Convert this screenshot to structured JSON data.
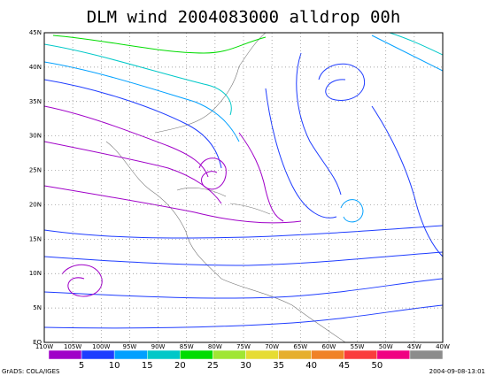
{
  "title": "DLM wind 2004083000 alldrop 00h",
  "map": {
    "lat_range": [
      0,
      45
    ],
    "lon_range": [
      -110,
      -40
    ],
    "lat_ticks": [
      {
        "value": 0,
        "label": "EQ"
      },
      {
        "value": 5,
        "label": "5N"
      },
      {
        "value": 10,
        "label": "10N"
      },
      {
        "value": 15,
        "label": "15N"
      },
      {
        "value": 20,
        "label": "20N"
      },
      {
        "value": 25,
        "label": "25N"
      },
      {
        "value": 30,
        "label": "30N"
      },
      {
        "value": 35,
        "label": "35N"
      },
      {
        "value": 40,
        "label": "40N"
      },
      {
        "value": 45,
        "label": "45N"
      }
    ],
    "lon_ticks": [
      {
        "value": -110,
        "label": "110W"
      },
      {
        "value": -105,
        "label": "105W"
      },
      {
        "value": -100,
        "label": "100W"
      },
      {
        "value": -95,
        "label": "95W"
      },
      {
        "value": -90,
        "label": "90W"
      },
      {
        "value": -85,
        "label": "85W"
      },
      {
        "value": -80,
        "label": "80W"
      },
      {
        "value": -75,
        "label": "75W"
      },
      {
        "value": -70,
        "label": "70W"
      },
      {
        "value": -65,
        "label": "65W"
      },
      {
        "value": -60,
        "label": "60W"
      },
      {
        "value": -55,
        "label": "55W"
      },
      {
        "value": -50,
        "label": "50W"
      },
      {
        "value": -45,
        "label": "45W"
      },
      {
        "value": -40,
        "label": "40W"
      }
    ]
  },
  "colorbar": {
    "colors": [
      "#a000c8",
      "#1e3cff",
      "#00a0ff",
      "#00c8c8",
      "#00dc00",
      "#a0e632",
      "#e6dc32",
      "#e6af2d",
      "#f08228",
      "#fa3c3c",
      "#f00082",
      "#8c8c8c"
    ],
    "labels": [
      5,
      10,
      15,
      20,
      25,
      30,
      35,
      40,
      45,
      50
    ]
  },
  "footer": {
    "left": "GrADS: COLA/IGES",
    "right": "2004-09-08-13:01"
  }
}
